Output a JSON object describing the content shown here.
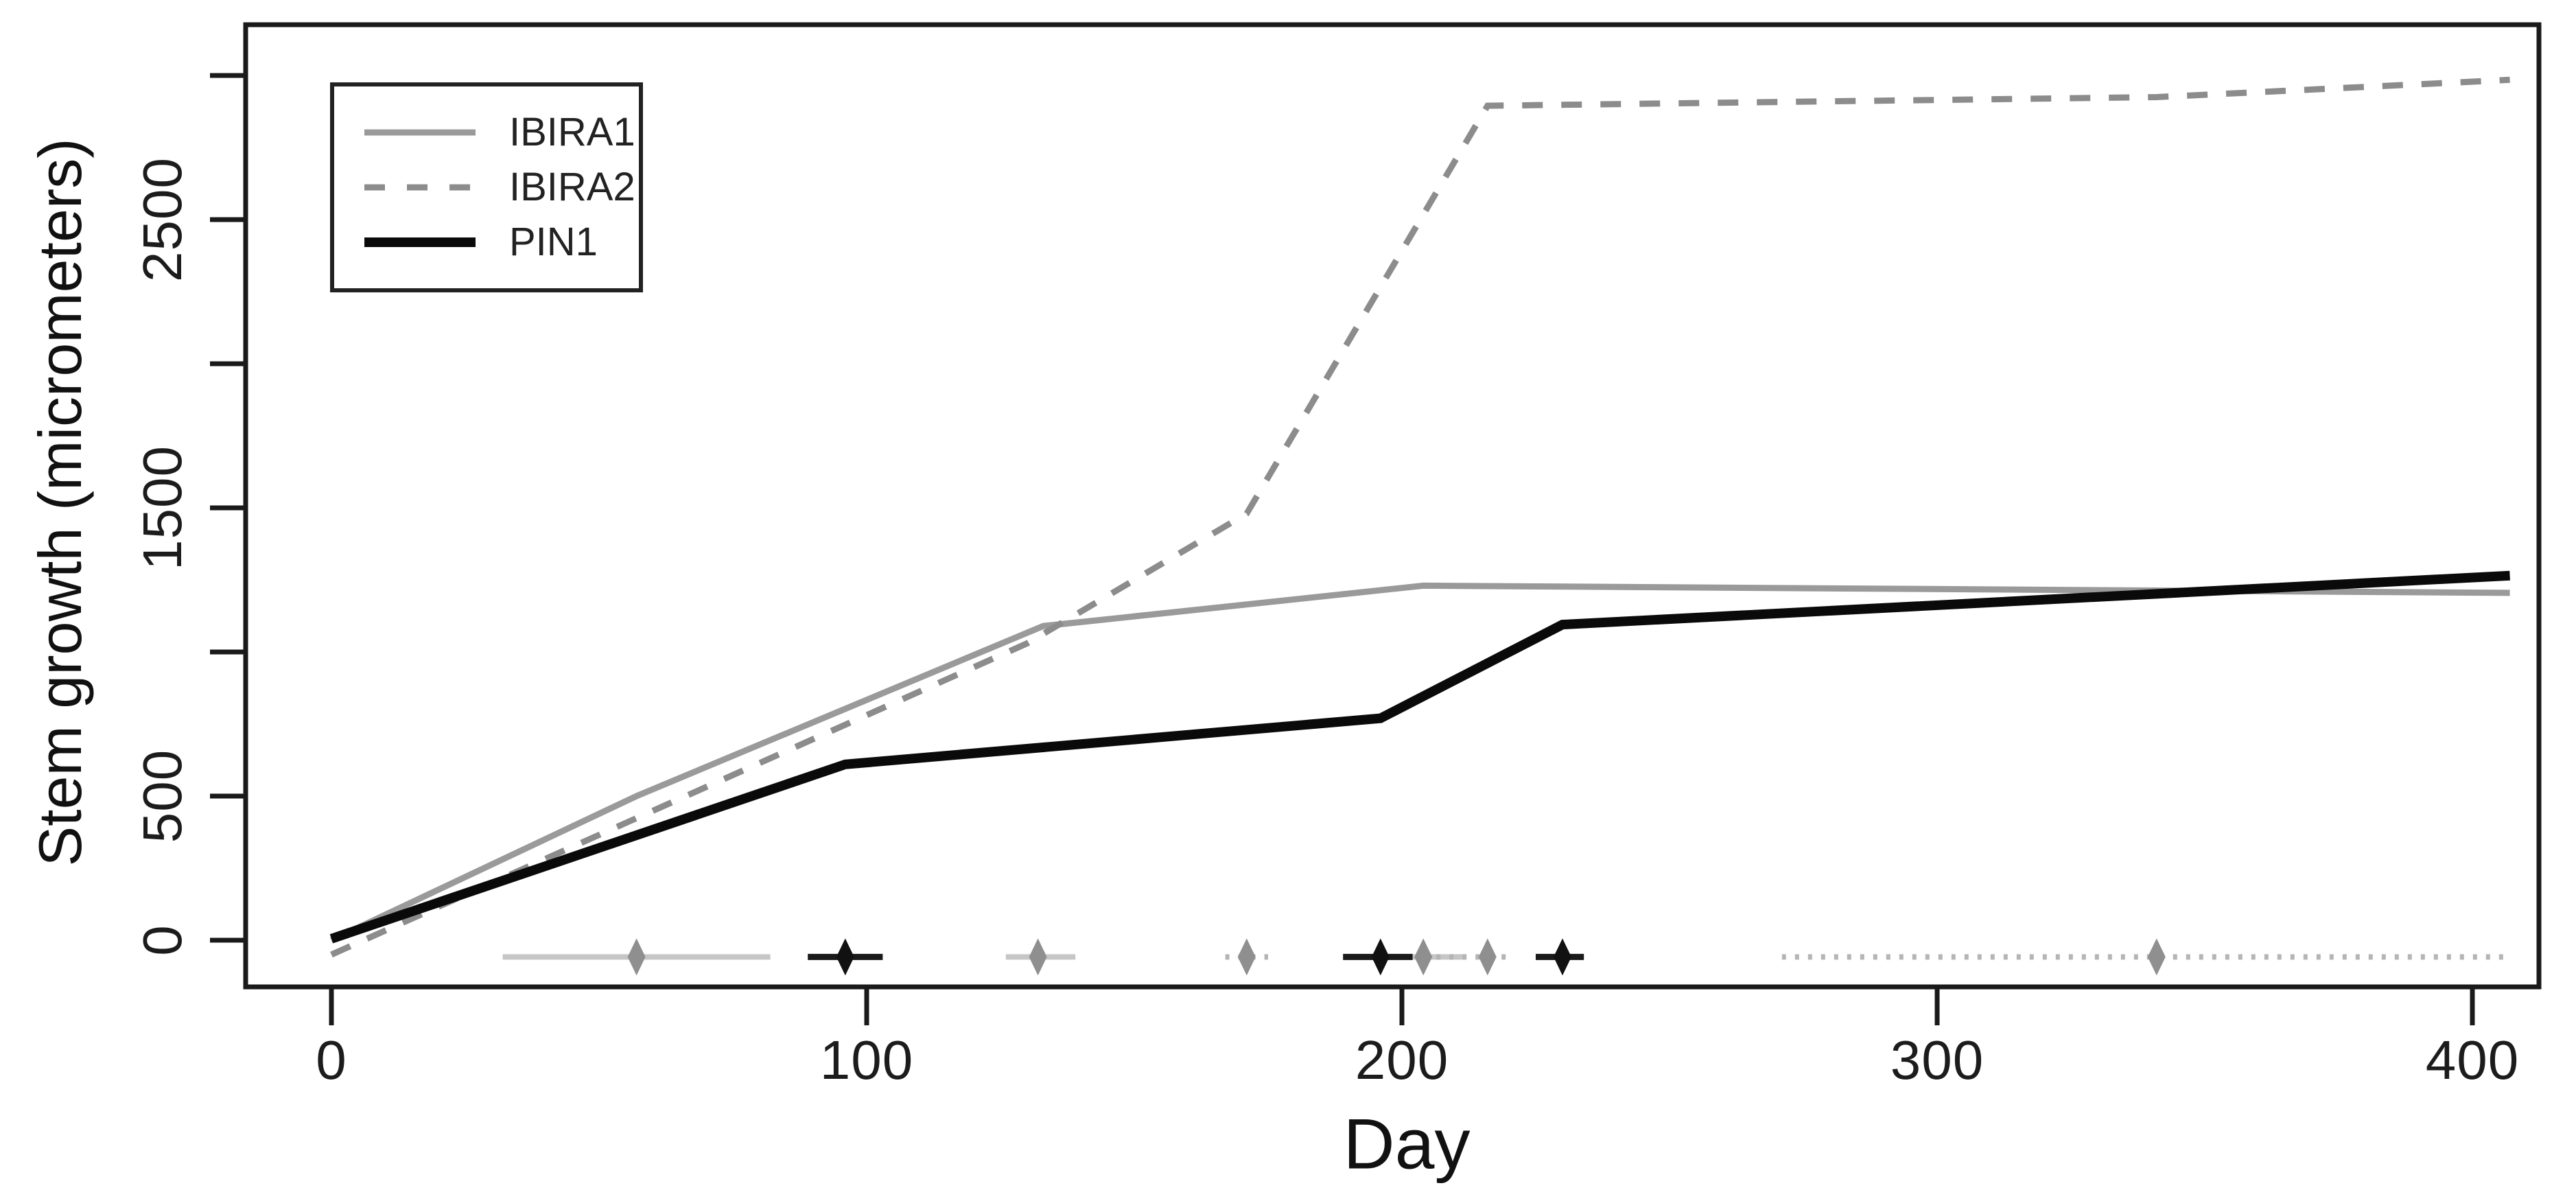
{
  "figure": {
    "background": "#ffffff",
    "text_color": "#1c1c1c",
    "x_axis": {
      "label": "Day",
      "ticks": [
        0,
        100,
        200,
        300,
        400
      ],
      "tick_labels": [
        "0",
        "100",
        "200",
        "300",
        "400"
      ]
    },
    "y_axis": {
      "label": "Stem growth (micrometers)",
      "ticks": [
        0,
        500,
        1000,
        1500,
        2000,
        2500,
        3000
      ],
      "labeled_ticks": [
        0,
        500,
        1500,
        2500
      ],
      "tick_labels": [
        "0",
        "500",
        "1500",
        "2500"
      ]
    },
    "legend": {
      "position": "top-left",
      "items": [
        {
          "label": "IBIRA1"
        },
        {
          "label": "IBIRA2"
        },
        {
          "label": "PIN1"
        }
      ]
    }
  },
  "chart_data": {
    "type": "line",
    "title": "",
    "xlabel": "Day",
    "ylabel": "Stem growth (micrometers)",
    "xlim": [
      -16,
      412
    ],
    "ylim": [
      -160,
      3180
    ],
    "grid": false,
    "legend_position": "top-left",
    "x_ticks": [
      0,
      100,
      200,
      300,
      400
    ],
    "y_ticks": [
      0,
      500,
      1000,
      1500,
      2000,
      2500,
      3000
    ],
    "y_labeled_ticks": [
      0,
      500,
      1500,
      2500
    ],
    "series": [
      {
        "name": "IBIRA1",
        "style": "solid",
        "color": "#9a9a9a",
        "width": 9,
        "points": [
          [
            0,
            0
          ],
          [
            57,
            500
          ],
          [
            133,
            1090
          ],
          [
            204,
            1230
          ],
          [
            407,
            1205
          ]
        ]
      },
      {
        "name": "IBIRA2",
        "style": "dashed",
        "color": "#8c8c8c",
        "width": 9,
        "points": [
          [
            0,
            -50
          ],
          [
            130,
            1030
          ],
          [
            171,
            1480
          ],
          [
            216,
            2895
          ],
          [
            341,
            2925
          ],
          [
            407,
            2985
          ]
        ]
      },
      {
        "name": "PIN1",
        "style": "solid",
        "color": "#0a0a0a",
        "width": 14,
        "points": [
          [
            0,
            5
          ],
          [
            96,
            610
          ],
          [
            196,
            770
          ],
          [
            230,
            1095
          ],
          [
            407,
            1265
          ]
        ]
      }
    ],
    "breakpoint_markers": {
      "description": "Breakpoint estimates (diamonds) with confidence-interval bars drawn above the x-axis",
      "y": -58,
      "marker_shape": "diamond",
      "groups": [
        {
          "series": "IBIRA1",
          "bar_style": "solid",
          "bar_color": "#c6c6c6",
          "marker_color": "#8f8f8f",
          "points": [
            {
              "x": 57,
              "lo": 32,
              "hi": 82
            },
            {
              "x": 132,
              "lo": 126,
              "hi": 139
            },
            {
              "x": 204,
              "lo": 198,
              "hi": 212
            }
          ]
        },
        {
          "series": "IBIRA2",
          "bar_style": "dotted",
          "bar_color": "#b5b5b5",
          "marker_color": "#8f8f8f",
          "points": [
            {
              "x": 171,
              "lo": 167,
              "hi": 175
            },
            {
              "x": 216,
              "lo": 204,
              "hi": 221
            },
            {
              "x": 341,
              "lo": 271,
              "hi": 407
            }
          ]
        },
        {
          "series": "PIN1",
          "bar_style": "solid",
          "bar_color": "#1a1a1a",
          "marker_color": "#111111",
          "points": [
            {
              "x": 96,
              "lo": 89,
              "hi": 103
            },
            {
              "x": 196,
              "lo": 189,
              "hi": 202
            },
            {
              "x": 230,
              "lo": 225,
              "hi": 234
            }
          ]
        }
      ]
    }
  }
}
